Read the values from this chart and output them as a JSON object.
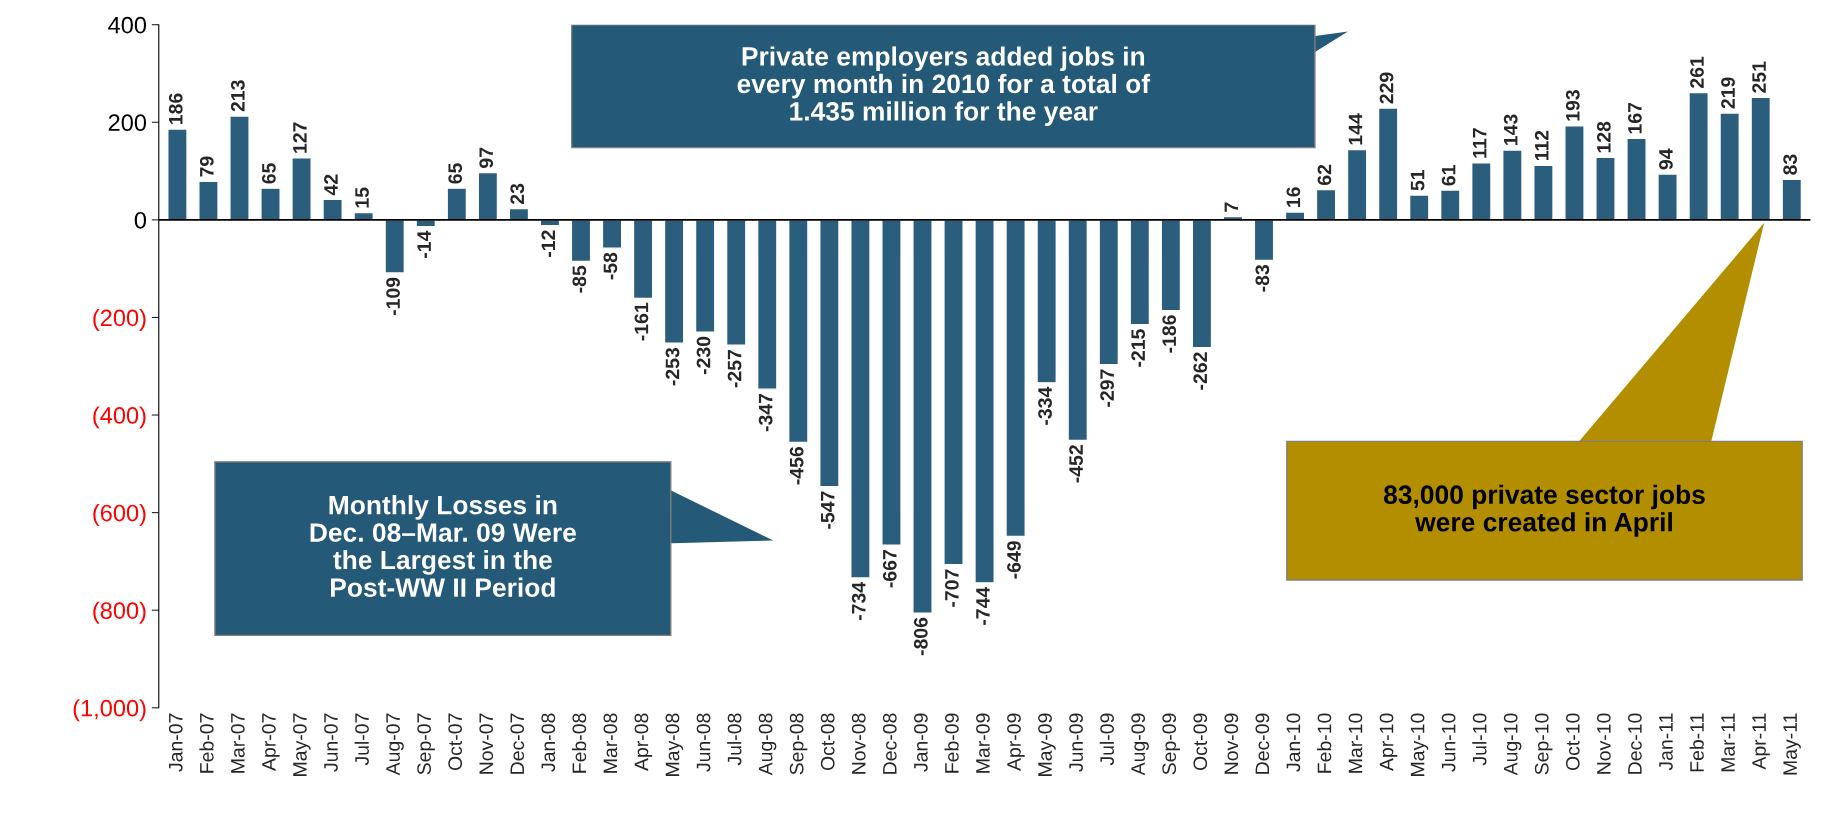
{
  "chart_data": {
    "type": "bar",
    "categories": [
      "Jan-07",
      "Feb-07",
      "Mar-07",
      "Apr-07",
      "May-07",
      "Jun-07",
      "Jul-07",
      "Aug-07",
      "Sep-07",
      "Oct-07",
      "Nov-07",
      "Dec-07",
      "Jan-08",
      "Feb-08",
      "Mar-08",
      "Apr-08",
      "May-08",
      "Jun-08",
      "Jul-08",
      "Aug-08",
      "Sep-08",
      "Oct-08",
      "Nov-08",
      "Dec-08",
      "Jan-09",
      "Feb-09",
      "Mar-09",
      "Apr-09",
      "May-09",
      "Jun-09",
      "Jul-09",
      "Aug-09",
      "Sep-09",
      "Oct-09",
      "Nov-09",
      "Dec-09",
      "Jan-10",
      "Feb-10",
      "Mar-10",
      "Apr-10",
      "May-10",
      "Jun-10",
      "Jul-10",
      "Aug-10",
      "Sep-10",
      "Oct-10",
      "Nov-10",
      "Dec-10",
      "Jan-11",
      "Feb-11",
      "Mar-11",
      "Apr-11",
      "May-11"
    ],
    "values": [
      186,
      79,
      213,
      65,
      127,
      42,
      15,
      -109,
      -14,
      65,
      97,
      23,
      -12,
      -85,
      -58,
      -161,
      -253,
      -230,
      -257,
      -347,
      -456,
      -547,
      -734,
      -667,
      -806,
      -707,
      -744,
      -649,
      -334,
      -452,
      -297,
      -215,
      -186,
      -262,
      7,
      -83,
      16,
      62,
      144,
      229,
      51,
      61,
      117,
      143,
      112,
      193,
      128,
      167,
      94,
      261,
      219,
      251,
      83
    ],
    "color": "#2b5d7c",
    "data_labels": true,
    "ylim": [
      -1000,
      400
    ],
    "yticks": [
      400,
      200,
      0,
      {
        "value": -200,
        "label": "(200)"
      },
      {
        "value": -400,
        "label": "(400)"
      },
      {
        "value": -600,
        "label": "(600)"
      },
      {
        "value": -800,
        "label": "(800)"
      },
      {
        "value": -1000,
        "label": "(1,000)"
      }
    ],
    "ref_lines": [
      {
        "axis": "y",
        "value": 0,
        "color": "#000000"
      }
    ],
    "grid": false,
    "legend": false,
    "annotations": [
      "Private employers added jobs in\nevery month in 2010 for a total of\n1.435 million for the year",
      "Monthly Losses in\nDec. 08–Mar. 09 Were\nthe Largest in the\nPost-WW II Period",
      "83,000 private sector jobs\nwere created in April"
    ]
  }
}
